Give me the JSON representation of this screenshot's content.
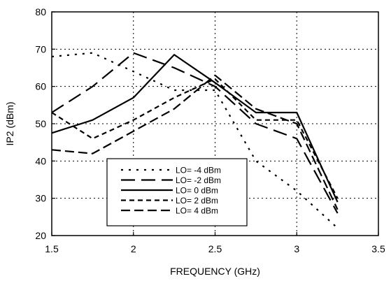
{
  "chart_data": {
    "type": "line",
    "xlabel": "FREQUENCY (GHz)",
    "ylabel": "IP2 (dBm)",
    "xlim": [
      1.5,
      3.5
    ],
    "ylim": [
      20,
      80
    ],
    "xticks": [
      1.5,
      2,
      2.5,
      3,
      3.5
    ],
    "xtick_labels": [
      "1.5",
      "2",
      "2.5",
      "3",
      "3.5"
    ],
    "yticks": [
      20,
      30,
      40,
      50,
      60,
      70,
      80
    ],
    "ytick_labels": [
      "20",
      "30",
      "40",
      "50",
      "60",
      "70",
      "80"
    ],
    "grid": true,
    "legend_position": "bottom-center",
    "series": [
      {
        "name": "LO= -4 dBm",
        "style": "dotted",
        "x": [
          1.5,
          1.75,
          2.0,
          2.25,
          2.5,
          2.75,
          3.0,
          3.25
        ],
        "y": [
          68,
          69,
          64,
          59,
          59,
          40,
          32,
          22
        ]
      },
      {
        "name": "LO= -2 dBm",
        "style": "long-dash",
        "x": [
          1.5,
          1.75,
          2.0,
          2.25,
          2.5,
          2.75,
          3.0,
          3.25
        ],
        "y": [
          53,
          60,
          69,
          65,
          60,
          50,
          46,
          26
        ]
      },
      {
        "name": "LO= 0 dBm",
        "style": "solid",
        "x": [
          1.5,
          1.75,
          2.0,
          2.25,
          2.5,
          2.75,
          3.0,
          3.25
        ],
        "y": [
          47.5,
          51,
          57,
          68.5,
          61,
          53,
          53,
          29
        ]
      },
      {
        "name": "LO= 2 dBm",
        "style": "short-dash",
        "x": [
          1.5,
          1.75,
          2.0,
          2.25,
          2.5,
          2.75,
          3.0,
          3.25
        ],
        "y": [
          53,
          46,
          51,
          57,
          62,
          51,
          51,
          30
        ]
      },
      {
        "name": "LO= 4 dBm",
        "style": "dash",
        "x": [
          1.5,
          1.75,
          2.0,
          2.25,
          2.5,
          2.75,
          3.0,
          3.25
        ],
        "y": [
          43,
          42,
          48,
          54,
          63,
          54,
          50,
          27
        ]
      }
    ]
  },
  "colors": {
    "line": "#000000",
    "grid": "#000000",
    "background": "#ffffff"
  }
}
